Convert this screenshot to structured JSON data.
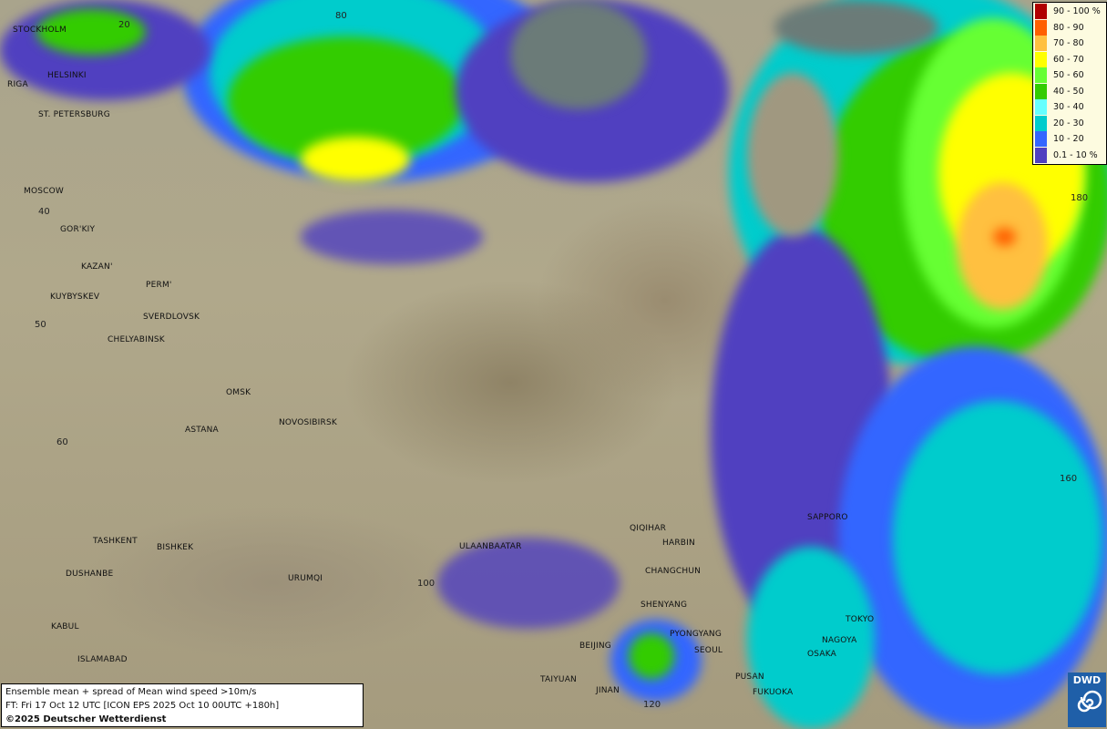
{
  "title": "Ensemble mean + spread of Mean wind speed >10m/s",
  "forecast_time": "FT: Fri 17 Oct 12 UTC [ICON EPS 2025 Oct 10 00UTC +180h]",
  "copyright": "©2025 Deutscher Wetterdienst",
  "logo_text": "DWD",
  "legend": [
    {
      "label": "90 - 100 %",
      "color": "#b00000"
    },
    {
      "label": "80 - 90",
      "color": "#ff6000"
    },
    {
      "label": "70 - 80",
      "color": "#ffc040"
    },
    {
      "label": "60 - 70",
      "color": "#ffff00"
    },
    {
      "label": "50 - 60",
      "color": "#66ff33"
    },
    {
      "label": "40 - 50",
      "color": "#33cc00"
    },
    {
      "label": "30 - 40",
      "color": "#66ffff"
    },
    {
      "label": "20 - 30",
      "color": "#00cccc"
    },
    {
      "label": "10 - 20",
      "color": "#3366ff"
    },
    {
      "label": "0.1 - 10 %",
      "color": "#5040c0"
    }
  ],
  "cities": [
    "STOCKHOLM",
    "HELSINKI",
    "RIGA",
    "ST. PETERSBURG",
    "MOSCOW",
    "GOR'KIY",
    "KAZAN'",
    "PERM'",
    "KUYBYSKEV",
    "SVERDLOVSK",
    "CHELYABINSK",
    "OMSK",
    "ASTANA",
    "NOVOSIBIRSK",
    "TASHKENT",
    "BISHKEK",
    "DUSHANBE",
    "URUMQI",
    "KABUL",
    "ISLAMABAD",
    "ULAANBAATAR",
    "QIQIHAR",
    "HARBIN",
    "CHANGCHUN",
    "SHENYANG",
    "PYONGYANG",
    "SEOUL",
    "BEIJING",
    "TAIYUAN",
    "JINAN",
    "PUSAN",
    "FUKUOKA",
    "OSAKA",
    "NAGOYA",
    "TOKYO",
    "SAPPORO"
  ],
  "grid_labels": [
    "20",
    "80",
    "40",
    "50",
    "60",
    "100",
    "160",
    "180",
    "120"
  ]
}
